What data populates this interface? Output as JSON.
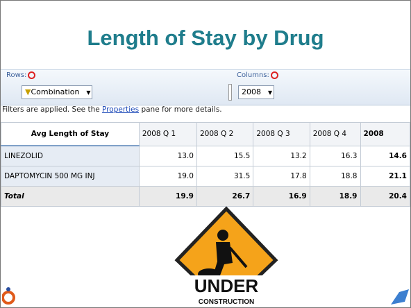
{
  "title": "Length of Stay by Drug",
  "toolbar": {
    "rows_label": "Rows:",
    "rows_value": "Combination",
    "columns_label": "Columns:",
    "columns_value": "2008"
  },
  "filter_note": {
    "parts": [
      "Filters are applied. See the ",
      "Properties",
      " pane for more details."
    ]
  },
  "table": {
    "header": [
      "Avg Length of Stay",
      "2008 Q 1",
      "2008 Q 2",
      "2008 Q 3",
      "2008 Q 4",
      "2008"
    ],
    "rows": [
      [
        "LINEZOLID",
        "13.0",
        "15.5",
        "13.2",
        "16.3",
        "14.6"
      ],
      [
        "DAPTOMYCIN 500 MG INJ",
        "19.0",
        "31.5",
        "17.8",
        "18.8",
        "21.1"
      ],
      [
        "Total",
        "19.9",
        "26.7",
        "16.9",
        "18.9",
        "20.4"
      ]
    ]
  },
  "sign": {
    "line1": "UNDER",
    "line2": "CONSTRUCTION"
  }
}
